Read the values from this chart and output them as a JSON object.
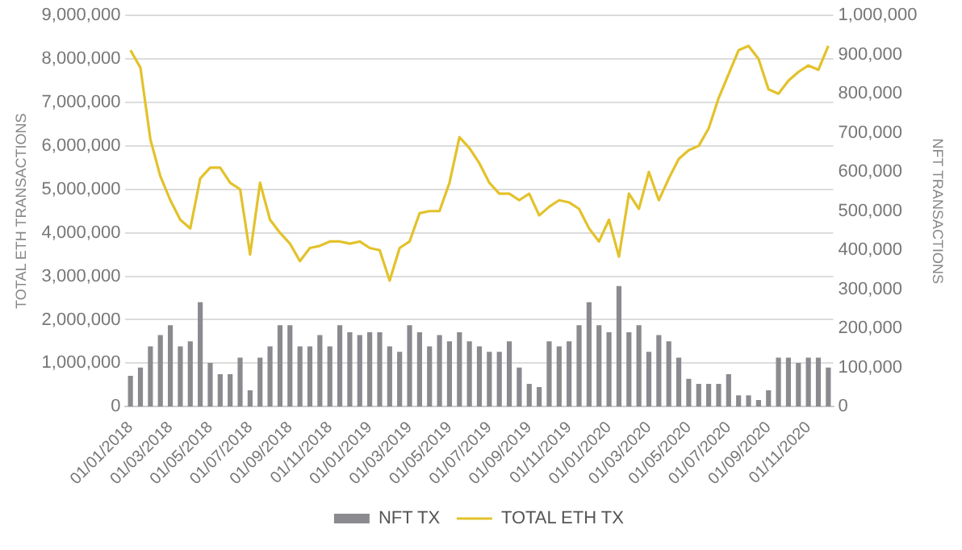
{
  "chart_data": {
    "type": "bar",
    "ylabel": "TOTAL ETH TRANSACTIONS",
    "y2label": "NFT TRANSACTIONS",
    "categories": [
      "01/01/2018",
      null,
      null,
      null,
      "01/03/2018",
      null,
      null,
      null,
      "01/05/2018",
      null,
      null,
      null,
      "01/07/2018",
      null,
      null,
      null,
      "01/09/2018",
      null,
      null,
      null,
      "01/11/2018",
      null,
      null,
      null,
      "01/01/2019",
      null,
      null,
      null,
      "01/03/2019",
      null,
      null,
      null,
      "01/05/2019",
      null,
      null,
      null,
      "01/07/2019",
      null,
      null,
      null,
      "01/09/2019",
      null,
      null,
      null,
      "01/11/2019",
      null,
      null,
      null,
      "01/01/2020",
      null,
      null,
      null,
      "01/03/2020",
      null,
      null,
      null,
      "01/05/2020",
      null,
      null,
      null,
      "01/07/2020",
      null,
      null,
      null,
      "01/09/2020",
      null,
      null,
      null,
      "01/11/2020",
      null,
      null
    ],
    "series": [
      {
        "name": "NFT TX",
        "axis": "y2",
        "color": "#8a8a8f",
        "values": [
          79000,
          100000,
          154000,
          183000,
          208000,
          154000,
          167000,
          267000,
          112000,
          83000,
          83000,
          125000,
          42000,
          125000,
          154000,
          208000,
          208000,
          154000,
          154000,
          183000,
          154000,
          208000,
          190000,
          183000,
          190000,
          190000,
          154000,
          140000,
          208000,
          190000,
          154000,
          183000,
          167000,
          190000,
          167000,
          154000,
          140000,
          140000,
          167000,
          100000,
          58000,
          50000,
          167000,
          154000,
          167000,
          208000,
          267000,
          208000,
          190000,
          308000,
          190000,
          208000,
          140000,
          183000,
          167000,
          125000,
          71000,
          58000,
          58000,
          58000,
          83000,
          29000,
          29000,
          17000,
          42000,
          125000,
          125000,
          112000,
          125000,
          125000,
          100000
        ]
      },
      {
        "name": "TOTAL ETH TX",
        "type": "line",
        "axis": "y",
        "color": "#e3c22b",
        "values": [
          8200000,
          7800000,
          6150000,
          5300000,
          4750000,
          4300000,
          4100000,
          5250000,
          5500000,
          5500000,
          5150000,
          5000000,
          3500000,
          5150000,
          4300000,
          4000000,
          3750000,
          3350000,
          3650000,
          3700000,
          3800000,
          3800000,
          3750000,
          3800000,
          3650000,
          3600000,
          2900000,
          3650000,
          3800000,
          4450000,
          4500000,
          4500000,
          5150000,
          6200000,
          5950000,
          5600000,
          5150000,
          4900000,
          4900000,
          4750000,
          4900000,
          4400000,
          4600000,
          4750000,
          4700000,
          4550000,
          4100000,
          3800000,
          4300000,
          3450000,
          4900000,
          4550000,
          5400000,
          4750000,
          5250000,
          5700000,
          5900000,
          6000000,
          6400000,
          7100000,
          7650000,
          8200000,
          8300000,
          8000000,
          7300000,
          7200000,
          7500000,
          7700000,
          7850000,
          7750000,
          8300000
        ]
      }
    ],
    "ylim": [
      0,
      9000000
    ],
    "yticks": [
      {
        "value": 0,
        "label": "0"
      },
      {
        "value": 1000000,
        "label": "1,000,000"
      },
      {
        "value": 2000000,
        "label": "2,000,000"
      },
      {
        "value": 3000000,
        "label": "3,000,000"
      },
      {
        "value": 4000000,
        "label": "4,000,000"
      },
      {
        "value": 5000000,
        "label": "5,000,000"
      },
      {
        "value": 6000000,
        "label": "6,000,000"
      },
      {
        "value": 7000000,
        "label": "7,000,000"
      },
      {
        "value": 8000000,
        "label": "8,000,000"
      },
      {
        "value": 9000000,
        "label": "9,000,000"
      }
    ],
    "y2lim": [
      0,
      1000000
    ],
    "y2ticks": [
      {
        "value": 0,
        "label": "0"
      },
      {
        "value": 100000,
        "label": "100,000"
      },
      {
        "value": 200000,
        "label": "200,000"
      },
      {
        "value": 300000,
        "label": "300,000"
      },
      {
        "value": 400000,
        "label": "400,000"
      },
      {
        "value": 500000,
        "label": "500,000"
      },
      {
        "value": 600000,
        "label": "600,000"
      },
      {
        "value": 700000,
        "label": "700,000"
      },
      {
        "value": 800000,
        "label": "800,000"
      },
      {
        "value": 900000,
        "label": "900,000"
      },
      {
        "value": 1000000,
        "label": "1,000,000"
      }
    ],
    "grid": "y",
    "legend": "bottom",
    "marker": "none",
    "line_style": "solid"
  }
}
